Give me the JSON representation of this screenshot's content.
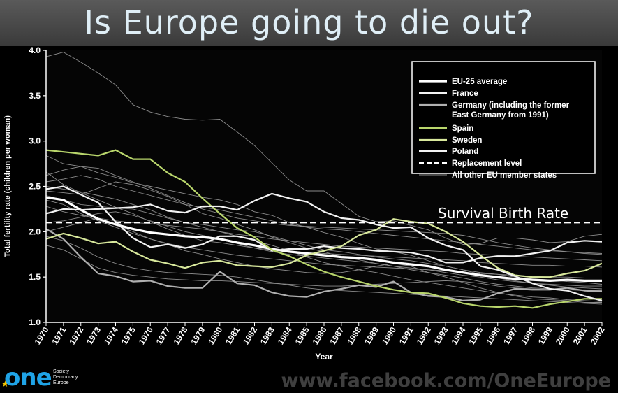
{
  "header": {
    "title": "Is Europe going to die out?"
  },
  "footer": {
    "url": "www.facebook.com/OneEurope"
  },
  "logo": {
    "word": "one",
    "tagline": [
      "Society",
      "Democracy",
      "Europe"
    ]
  },
  "colors": {
    "white": "#ffffff",
    "green": "#b9d66c",
    "pale_green": "#d8e89c",
    "grey": "#9a9a9a"
  },
  "chart_data": {
    "type": "line",
    "ylabel": "Total fertility rate (children per woman)",
    "xlabel": "Year",
    "ylim": [
      1.0,
      4.0
    ],
    "yticks": [
      "1.0",
      "1.5",
      "2.0",
      "2.5",
      "3.0",
      "3.5",
      "4.0"
    ],
    "x": [
      "1970",
      "1971",
      "1972",
      "1973",
      "1974",
      "1975",
      "1976",
      "1977",
      "1978",
      "1979",
      "1980",
      "1981",
      "1982",
      "1983",
      "1984",
      "1985",
      "1986",
      "1987",
      "1988",
      "1989",
      "1990",
      "1991",
      "1992",
      "1993",
      "1994",
      "1995",
      "1996",
      "1997",
      "1998",
      "1999",
      "2000",
      "2001",
      "2002"
    ],
    "annotation": "Survival Birth Rate",
    "legend_position": "top-right",
    "legend": [
      "EU-25 average",
      "France",
      "Germany (including the former East Germany from 1991)",
      "Spain",
      "Sweden",
      "Poland",
      "Replacement level",
      "All other EU member states"
    ],
    "replacement_level": 2.1,
    "series": [
      {
        "name": "EU-25 average",
        "style": "white-thick",
        "values": [
          2.38,
          2.35,
          2.24,
          2.14,
          2.08,
          2.03,
          1.99,
          1.97,
          1.95,
          1.94,
          1.92,
          1.88,
          1.85,
          1.81,
          1.78,
          1.76,
          1.74,
          1.72,
          1.71,
          1.69,
          1.66,
          1.64,
          1.62,
          1.58,
          1.55,
          1.52,
          1.5,
          1.48,
          1.47,
          1.46,
          1.47,
          1.46,
          1.46
        ]
      },
      {
        "name": "France",
        "style": "white",
        "values": [
          2.47,
          2.5,
          2.41,
          2.32,
          2.11,
          1.93,
          1.83,
          1.86,
          1.82,
          1.86,
          1.95,
          1.95,
          1.91,
          1.79,
          1.81,
          1.81,
          1.84,
          1.82,
          1.81,
          1.79,
          1.78,
          1.77,
          1.73,
          1.66,
          1.66,
          1.71,
          1.73,
          1.73,
          1.76,
          1.79,
          1.88,
          1.9,
          1.89
        ]
      },
      {
        "name": "Germany (including the former East Germany from 1991)",
        "style": "grey",
        "values": [
          2.03,
          1.92,
          1.72,
          1.54,
          1.51,
          1.45,
          1.46,
          1.4,
          1.38,
          1.38,
          1.56,
          1.43,
          1.41,
          1.33,
          1.29,
          1.28,
          1.34,
          1.37,
          1.41,
          1.39,
          1.45,
          1.33,
          1.29,
          1.28,
          1.24,
          1.25,
          1.32,
          1.37,
          1.36,
          1.36,
          1.38,
          1.35,
          1.34
        ]
      },
      {
        "name": "Spain",
        "style": "green",
        "values": [
          2.9,
          2.88,
          2.86,
          2.84,
          2.9,
          2.8,
          2.8,
          2.65,
          2.55,
          2.37,
          2.2,
          2.04,
          1.94,
          1.8,
          1.73,
          1.64,
          1.56,
          1.5,
          1.45,
          1.4,
          1.36,
          1.33,
          1.32,
          1.27,
          1.21,
          1.18,
          1.17,
          1.18,
          1.16,
          1.2,
          1.23,
          1.26,
          1.26
        ]
      },
      {
        "name": "Sweden",
        "style": "pale-green",
        "values": [
          1.92,
          1.98,
          1.93,
          1.87,
          1.89,
          1.78,
          1.69,
          1.65,
          1.6,
          1.66,
          1.68,
          1.63,
          1.62,
          1.61,
          1.65,
          1.74,
          1.79,
          1.84,
          1.96,
          2.02,
          2.14,
          2.11,
          2.09,
          2.0,
          1.89,
          1.74,
          1.6,
          1.52,
          1.5,
          1.5,
          1.54,
          1.57,
          1.65
        ]
      },
      {
        "name": "Poland",
        "style": "white",
        "values": [
          2.2,
          2.25,
          2.24,
          2.25,
          2.26,
          2.27,
          2.3,
          2.23,
          2.21,
          2.28,
          2.28,
          2.24,
          2.34,
          2.42,
          2.37,
          2.33,
          2.22,
          2.15,
          2.13,
          2.08,
          2.04,
          2.05,
          1.93,
          1.85,
          1.8,
          1.62,
          1.58,
          1.51,
          1.43,
          1.37,
          1.35,
          1.29,
          1.24
        ]
      },
      {
        "name": "All other EU member states",
        "style": "thin-grey",
        "values": [
          3.93,
          3.98,
          3.87,
          3.75,
          3.62,
          3.4,
          3.32,
          3.27,
          3.24,
          3.23,
          3.24,
          3.1,
          2.95,
          2.76,
          2.57,
          2.45,
          2.45,
          2.31,
          2.17,
          2.11,
          2.12,
          2.07,
          2.02,
          1.93,
          1.86,
          1.87,
          1.93,
          1.93,
          1.91,
          1.88,
          1.89,
          1.95,
          1.97
        ]
      },
      {
        "name": "All other EU member states",
        "style": "thin-grey",
        "values": [
          2.84,
          2.75,
          2.72,
          2.65,
          2.6,
          2.54,
          2.5,
          2.46,
          2.42,
          2.38,
          2.35,
          2.3,
          2.22,
          2.18,
          2.1,
          2.05,
          1.99,
          1.94,
          1.87,
          1.81,
          1.78,
          1.74,
          1.68,
          1.62,
          1.58,
          1.53,
          1.49,
          1.46,
          1.43,
          1.42,
          1.41,
          1.4,
          1.4
        ]
      },
      {
        "name": "All other EU member states",
        "style": "thin-grey",
        "values": [
          2.4,
          2.35,
          2.3,
          2.28,
          2.26,
          2.25,
          2.2,
          2.15,
          2.1,
          2.08,
          2.05,
          2.02,
          2.0,
          1.95,
          1.9,
          1.85,
          1.8,
          1.78,
          1.75,
          1.72,
          1.7,
          1.68,
          1.65,
          1.62,
          1.58,
          1.55,
          1.53,
          1.5,
          1.48,
          1.47,
          1.45,
          1.44,
          1.42
        ]
      },
      {
        "name": "All other EU member states",
        "style": "thin-grey",
        "values": [
          2.66,
          2.52,
          2.43,
          2.35,
          2.27,
          2.2,
          2.11,
          2.03,
          1.96,
          1.9,
          1.88,
          1.85,
          1.82,
          1.8,
          1.79,
          1.77,
          1.76,
          1.75,
          1.74,
          1.73,
          1.72,
          1.71,
          1.7,
          1.69,
          1.68,
          1.66,
          1.65,
          1.64,
          1.63,
          1.63,
          1.62,
          1.62,
          1.61
        ]
      },
      {
        "name": "All other EU member states",
        "style": "thin-grey",
        "values": [
          2.45,
          2.43,
          2.41,
          2.48,
          2.55,
          2.52,
          2.46,
          2.39,
          2.3,
          2.2,
          2.15,
          2.08,
          2.02,
          1.94,
          1.88,
          1.82,
          1.78,
          1.72,
          1.69,
          1.65,
          1.62,
          1.58,
          1.55,
          1.52,
          1.49,
          1.45,
          1.42,
          1.4,
          1.38,
          1.37,
          1.36,
          1.36,
          1.35
        ]
      },
      {
        "name": "All other EU member states",
        "style": "thin-grey",
        "values": [
          2.0,
          2.05,
          2.1,
          2.15,
          2.08,
          2.0,
          1.92,
          1.86,
          1.79,
          1.75,
          1.7,
          1.66,
          1.62,
          1.59,
          1.57,
          1.55,
          1.54,
          1.55,
          1.58,
          1.62,
          1.65,
          1.62,
          1.55,
          1.5,
          1.44,
          1.38,
          1.33,
          1.29,
          1.26,
          1.25,
          1.24,
          1.22,
          1.22
        ]
      },
      {
        "name": "All other EU member states",
        "style": "thin-grey",
        "values": [
          2.5,
          2.47,
          2.44,
          2.4,
          2.36,
          2.3,
          2.24,
          2.16,
          2.1,
          2.05,
          2.0,
          1.95,
          1.9,
          1.85,
          1.79,
          1.72,
          1.66,
          1.62,
          1.58,
          1.55,
          1.51,
          1.47,
          1.44,
          1.41,
          1.38,
          1.35,
          1.32,
          1.3,
          1.28,
          1.27,
          1.25,
          1.24,
          1.23
        ]
      },
      {
        "name": "All other EU member states",
        "style": "thin-grey",
        "values": [
          2.28,
          2.22,
          2.18,
          2.15,
          2.12,
          2.1,
          2.09,
          2.07,
          2.05,
          2.03,
          2.0,
          1.97,
          1.95,
          1.92,
          1.9,
          1.88,
          1.86,
          1.84,
          1.83,
          1.82,
          1.81,
          1.8,
          1.79,
          1.78,
          1.76,
          1.75,
          1.74,
          1.73,
          1.72,
          1.71,
          1.7,
          1.69,
          1.68
        ]
      },
      {
        "name": "All other EU member states",
        "style": "thin-grey",
        "values": [
          1.85,
          1.8,
          1.7,
          1.6,
          1.55,
          1.52,
          1.5,
          1.48,
          1.47,
          1.46,
          1.46,
          1.45,
          1.44,
          1.43,
          1.42,
          1.41,
          1.4,
          1.4,
          1.41,
          1.42,
          1.43,
          1.44,
          1.45,
          1.46,
          1.45,
          1.43,
          1.4,
          1.38,
          1.37,
          1.36,
          1.36,
          1.35,
          1.35
        ]
      },
      {
        "name": "All other EU member states",
        "style": "thin-grey",
        "values": [
          2.55,
          2.58,
          2.62,
          2.58,
          2.5,
          2.45,
          2.4,
          2.35,
          2.3,
          2.27,
          2.24,
          2.2,
          2.16,
          2.12,
          2.08,
          2.05,
          2.03,
          2.02,
          2.0,
          1.98,
          1.96,
          1.94,
          1.92,
          1.9,
          1.88,
          1.86,
          1.84,
          1.82,
          1.8,
          1.79,
          1.78,
          1.77,
          1.76
        ]
      },
      {
        "name": "All other EU member states",
        "style": "thin-grey",
        "values": [
          2.1,
          2.12,
          2.16,
          2.2,
          2.22,
          2.18,
          2.12,
          2.06,
          2.0,
          1.96,
          1.92,
          1.87,
          1.82,
          1.78,
          1.75,
          1.73,
          1.71,
          1.69,
          1.67,
          1.65,
          1.62,
          1.6,
          1.58,
          1.55,
          1.52,
          1.5,
          1.47,
          1.45,
          1.43,
          1.41,
          1.39,
          1.38,
          1.37
        ]
      },
      {
        "name": "All other EU member states",
        "style": "thin-grey",
        "values": [
          2.62,
          2.68,
          2.72,
          2.7,
          2.62,
          2.55,
          2.48,
          2.4,
          2.32,
          2.25,
          2.2,
          2.15,
          2.12,
          2.09,
          2.07,
          2.06,
          2.05,
          2.04,
          2.03,
          2.02,
          2.01,
          2.0,
          1.99,
          1.98,
          1.96,
          1.92,
          1.88,
          1.85,
          1.82,
          1.8,
          1.78,
          1.76,
          1.75
        ]
      },
      {
        "name": "All other EU member states",
        "style": "thin-grey",
        "values": [
          1.95,
          1.9,
          1.82,
          1.72,
          1.65,
          1.6,
          1.57,
          1.55,
          1.54,
          1.53,
          1.52,
          1.5,
          1.47,
          1.44,
          1.41,
          1.38,
          1.36,
          1.35,
          1.34,
          1.33,
          1.32,
          1.31,
          1.3,
          1.29,
          1.28,
          1.27,
          1.26,
          1.25,
          1.24,
          1.23,
          1.22,
          1.21,
          1.2
        ]
      },
      {
        "name": "All other EU member states",
        "style": "thin-grey",
        "values": [
          2.35,
          2.3,
          2.2,
          2.12,
          2.05,
          1.98,
          1.92,
          1.87,
          1.83,
          1.8,
          1.77,
          1.74,
          1.72,
          1.7,
          1.68,
          1.66,
          1.64,
          1.63,
          1.62,
          1.61,
          1.6,
          1.59,
          1.58,
          1.57,
          1.55,
          1.54,
          1.53,
          1.52,
          1.51,
          1.5,
          1.5,
          1.49,
          1.49
        ]
      }
    ]
  }
}
